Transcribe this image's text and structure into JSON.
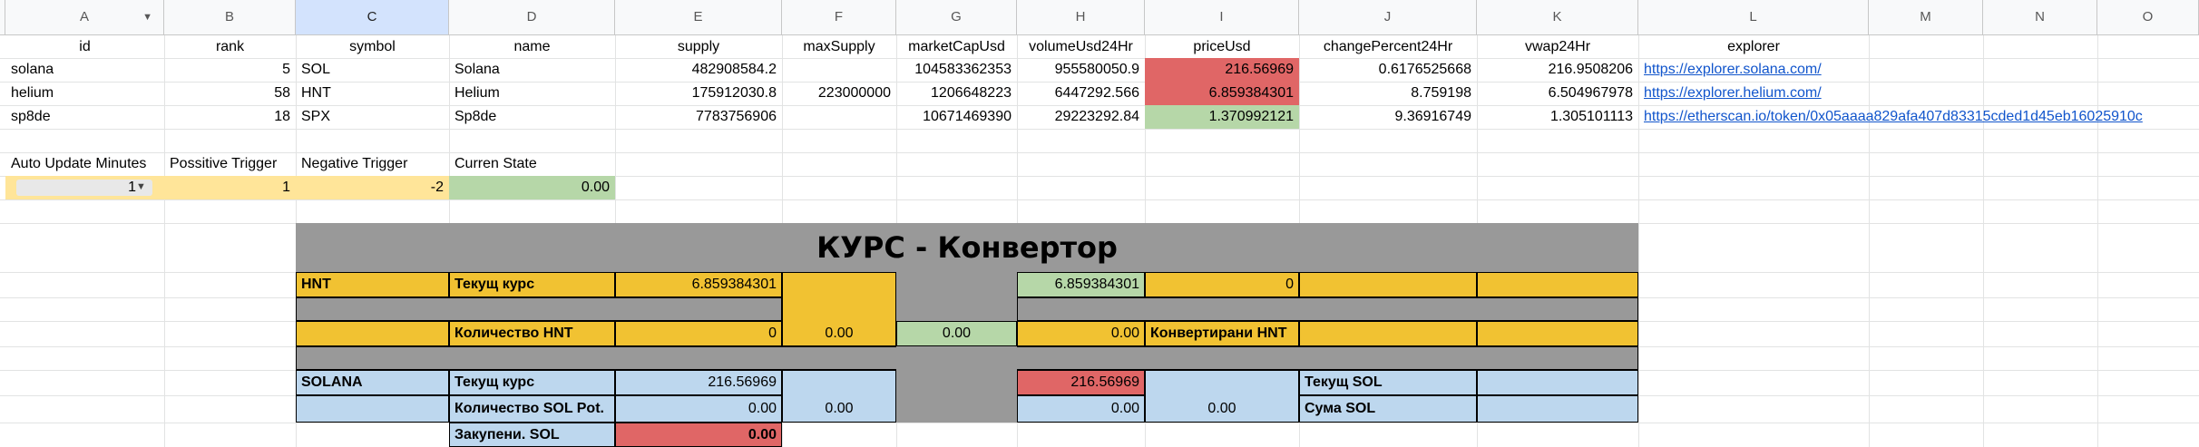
{
  "columns": [
    "A",
    "B",
    "C",
    "D",
    "E",
    "F",
    "G",
    "H",
    "I",
    "J",
    "K",
    "L",
    "M",
    "N",
    "O"
  ],
  "header_row": [
    "id",
    "rank",
    "symbol",
    "name",
    "supply",
    "maxSupply",
    "marketCapUsd",
    "volumeUsd24Hr",
    "priceUsd",
    "changePercent24Hr",
    "vwap24Hr",
    "explorer"
  ],
  "rows": [
    [
      "solana",
      "5",
      "SOL",
      "Solana",
      "482908584.2",
      "",
      "104583362353",
      "955580050.9",
      "216.56969",
      "0.6176525668",
      "216.9508206",
      "https://explorer.solana.com/"
    ],
    [
      "helium",
      "58",
      "HNT",
      "Helium",
      "175912030.8",
      "223000000",
      "1206648223",
      "6447292.566",
      "6.859384301",
      "8.759198",
      "6.504967978",
      "https://explorer.helium.com/"
    ],
    [
      "sp8de",
      "18",
      "SPX",
      "Sp8de",
      "7783756906",
      "",
      "10671469390",
      "29223292.84",
      "1.370992121",
      "9.36916749",
      "1.305101113",
      "https://etherscan.io/token/0x05aaaa829afa407d83315cded1d45eb16025910c"
    ]
  ],
  "settings": {
    "labels": [
      "Auto Update Minutes",
      "Possitive Trigger",
      "Negative Trigger",
      "Curren State"
    ],
    "values": [
      "1",
      "1",
      "-2",
      "0.00"
    ]
  },
  "converter": {
    "title": "КУРС - Конвертор",
    "hnt_label": "HNT",
    "hnt_rate_label": "Текущ курс",
    "hnt_rate": "6.859384301",
    "hnt_rate_right": "6.859384301",
    "hnt_zero": "0",
    "hnt_qty_label": "Количество HNT",
    "hnt_qty": "0",
    "hnt_f": "0.00",
    "hnt_g": "0.00",
    "hnt_h": "0.00",
    "hnt_converted_label": "Конвертирани HNT",
    "sol_label": "SOLANA",
    "sol_rate_label": "Текущ курс",
    "sol_rate": "216.56969",
    "sol_rate_right": "216.56969",
    "sol_current_label": "Текущ SOL",
    "sol_qty_label": "Количество SOL Pot.",
    "sol_qty": "0.00",
    "sol_f": "0.00",
    "sol_h": "0.00",
    "sol_i": "0.00",
    "sol_sum_label": "Сума SOL",
    "bought_label": "Закупени. SOL",
    "bought_value": "0.00"
  },
  "colors": {
    "red": "#e06666",
    "green": "#b6d7a8",
    "orange": "#f1c232",
    "blue": "#bdd7ee",
    "gray": "#999999",
    "yellow_light": "#ffe599"
  }
}
